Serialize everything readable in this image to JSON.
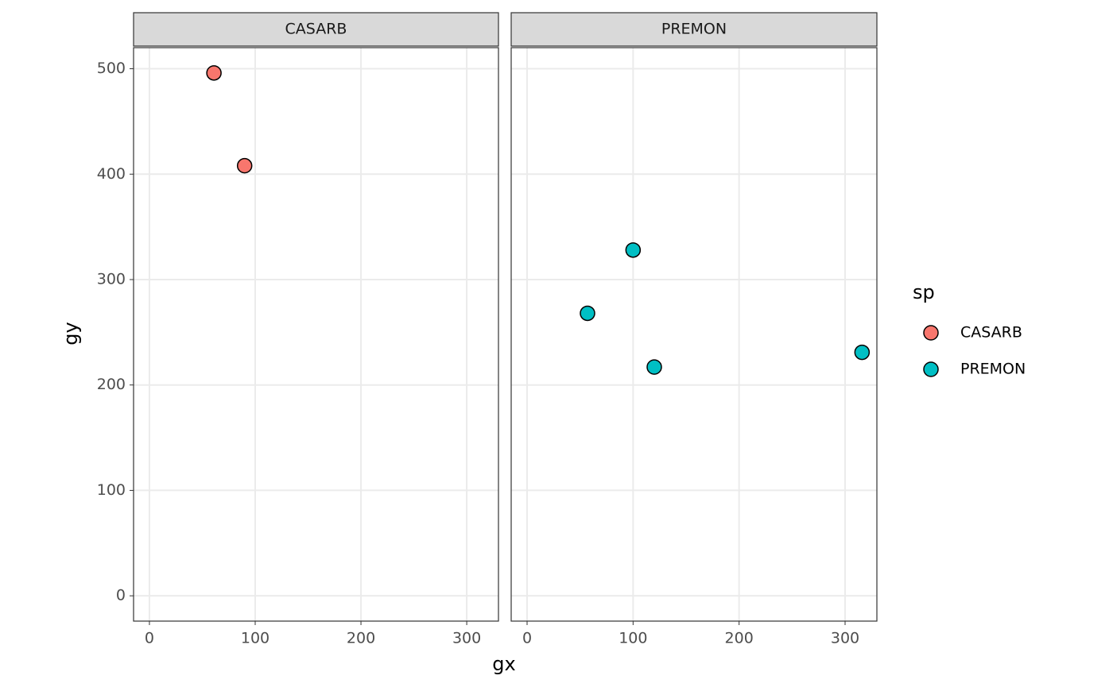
{
  "chart_data": {
    "type": "scatter",
    "facets": [
      "CASARB",
      "PREMON"
    ],
    "x_label": "gx",
    "y_label": "gy",
    "legend_title": "sp",
    "series": [
      {
        "name": "CASARB",
        "color": "#f8766d",
        "x": [
          61,
          90
        ],
        "values": [
          496,
          408
        ]
      },
      {
        "name": "PREMON",
        "color": "#00bfc4",
        "x": [
          57,
          100,
          120,
          316
        ],
        "values": [
          268,
          328,
          217,
          231
        ]
      }
    ],
    "xlim": [
      -15,
      330
    ],
    "xticks": [
      0,
      100,
      200,
      300
    ],
    "ylim": [
      -24,
      520
    ],
    "yticks": [
      0,
      100,
      200,
      300,
      400,
      500
    ],
    "grid": true,
    "legend": "right"
  }
}
